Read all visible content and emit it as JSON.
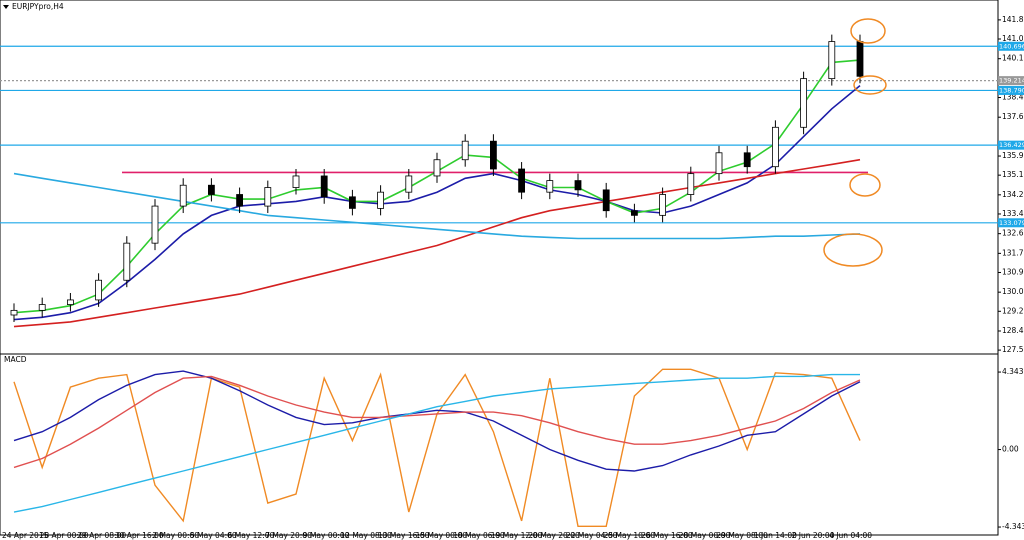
{
  "chart_data": [
    {
      "type": "candlestick",
      "title": "EURJPYpro,H4",
      "xticks": [
        "24 Apr 2015",
        "28 Apr 00:00",
        "29 Apr 08:00",
        "30 Apr 16:00",
        "2 May 00:00",
        "5 May 04:00",
        "6 May 12:00",
        "7 May 20:00",
        "9 May 00:00",
        "12 May 08:00",
        "13 May 16:00",
        "15 May 00:00",
        "18 May 06:00",
        "19 May 12:00",
        "20 May 20:00",
        "22 May 04:00",
        "25 May 10:00",
        "26 May 16:00",
        "28 May 00:00",
        "29 May 08:00",
        "1 Jun 14:00",
        "2 Jun 20:00",
        "4 Jun 04:00"
      ],
      "open": [
        129.1,
        129.3,
        129.55,
        129.75,
        130.6,
        132.2,
        133.8,
        134.7,
        134.3,
        133.8,
        134.6,
        135.1,
        134.2,
        133.7,
        134.4,
        135.1,
        135.8,
        136.6,
        135.4,
        134.4,
        134.9,
        134.5,
        133.6,
        133.4,
        134.3,
        135.2,
        136.1,
        135.5,
        137.2,
        139.3,
        140.9
      ],
      "high": [
        129.6,
        129.85,
        130.05,
        130.9,
        132.5,
        134.1,
        135.0,
        135.0,
        134.6,
        134.9,
        135.4,
        135.4,
        134.5,
        134.7,
        135.4,
        136.1,
        136.9,
        136.9,
        135.7,
        135.2,
        135.2,
        134.8,
        133.9,
        134.6,
        135.5,
        136.4,
        136.4,
        137.5,
        139.6,
        141.2,
        141.2
      ],
      "low": [
        128.8,
        129.0,
        129.25,
        129.45,
        130.3,
        131.9,
        133.5,
        134.0,
        133.5,
        133.5,
        134.3,
        133.9,
        133.4,
        133.4,
        134.1,
        134.8,
        135.5,
        135.1,
        134.1,
        134.1,
        134.2,
        133.3,
        133.1,
        133.1,
        134.0,
        134.9,
        135.2,
        135.2,
        136.9,
        139.0,
        139.1
      ],
      "close": [
        129.3,
        129.55,
        129.75,
        130.6,
        132.2,
        133.8,
        134.7,
        134.3,
        133.8,
        134.6,
        135.1,
        134.2,
        133.7,
        134.4,
        135.1,
        135.8,
        136.6,
        135.4,
        134.4,
        134.9,
        134.5,
        133.6,
        133.4,
        134.3,
        135.2,
        136.1,
        135.5,
        137.2,
        139.3,
        140.9,
        139.4
      ],
      "ylim": [
        127.46,
        142.65
      ],
      "yticks": [
        141.835,
        {
          "value": 141.01,
          "label": "141.010"
        },
        {
          "value": 140.16,
          "label": "140.160"
        },
        138.485,
        137.635,
        {
          "value": 135.96,
          "label": "135.960"
        },
        135.135,
        134.285,
        {
          "value": 133.46,
          "label": "133.460"
        },
        {
          "value": 132.61,
          "label": "132.610"
        },
        {
          "value": 131.76,
          "label": "131.760"
        },
        130.935,
        130.085,
        {
          "value": 129.26,
          "label": "129.260"
        },
        {
          "value": 128.41,
          "label": "128.410"
        },
        127.585
      ],
      "series": [
        {
          "color": "#1c1ca8",
          "values": [
            128.9,
            129.0,
            129.2,
            129.6,
            130.5,
            131.5,
            132.6,
            133.4,
            133.8,
            133.9,
            134.0,
            134.2,
            134.0,
            133.9,
            134.0,
            134.4,
            135.0,
            135.2,
            134.9,
            134.5,
            134.3,
            134.0,
            133.6,
            133.5,
            133.8,
            134.3,
            134.8,
            135.6,
            136.8,
            138.0,
            139.0
          ]
        },
        {
          "color": "#2ecc2e",
          "values": [
            129.2,
            129.3,
            129.5,
            130.0,
            131.2,
            132.6,
            133.8,
            134.3,
            134.1,
            134.1,
            134.5,
            134.6,
            134.0,
            134.0,
            134.6,
            135.3,
            136.0,
            135.9,
            135.0,
            134.6,
            134.6,
            134.0,
            133.5,
            133.7,
            134.4,
            135.3,
            135.7,
            136.5,
            138.2,
            140.0,
            140.1
          ]
        },
        {
          "color": "#d42020",
          "values": [
            128.6,
            128.7,
            128.8,
            129.0,
            129.2,
            129.4,
            129.6,
            129.8,
            130.0,
            130.3,
            130.6,
            130.9,
            131.2,
            131.5,
            131.8,
            132.1,
            132.5,
            132.9,
            133.3,
            133.6,
            133.8,
            134.0,
            134.2,
            134.4,
            134.6,
            134.8,
            135.0,
            135.2,
            135.4,
            135.6,
            135.8
          ]
        },
        {
          "color": "#29a9e0",
          "values": [
            135.2,
            135.0,
            134.8,
            134.6,
            134.4,
            134.2,
            134.0,
            133.8,
            133.6,
            133.4,
            133.3,
            133.2,
            133.1,
            133.0,
            132.9,
            132.8,
            132.7,
            132.6,
            132.5,
            132.45,
            132.4,
            132.4,
            132.4,
            132.4,
            132.4,
            132.4,
            132.45,
            132.5,
            132.5,
            132.55,
            132.6
          ]
        }
      ],
      "levels": [
        {
          "value": 140.696,
          "color": "#1fa8e8"
        },
        {
          "value": 138.79,
          "label": "138.790",
          "color": "#1fa8e8"
        },
        {
          "value": 136.429,
          "color": "#1fa8e8"
        },
        {
          "value": 133.079,
          "color": "#1fa8e8"
        }
      ],
      "resistance": {
        "value": 135.25,
        "color": "#e0206a"
      },
      "price_line": {
        "value": 139.214,
        "color": "#999999"
      }
    },
    {
      "type": "line",
      "title": "MACD",
      "ylim": [
        -4.79,
        5.3
      ],
      "yticks": [
        4.3438,
        {
          "value": 0,
          "label": "0.00"
        },
        -4.3438
      ],
      "series": [
        {
          "color": "#f08a24",
          "values": [
            3.8,
            -1.0,
            3.5,
            4.0,
            4.2,
            -2.0,
            -4.0,
            4.0,
            3.5,
            -3.0,
            -2.5,
            4.0,
            0.5,
            4.2,
            -3.5,
            2.0,
            4.2,
            1.0,
            -4.0,
            4.0,
            -4.3,
            -4.3,
            3.0,
            4.5,
            4.5,
            4.0,
            0.0,
            4.3,
            4.2,
            4.0,
            0.5
          ]
        },
        {
          "color": "#1c1ca8",
          "values": [
            0.5,
            1.0,
            1.8,
            2.8,
            3.6,
            4.2,
            4.4,
            4.0,
            3.3,
            2.5,
            1.8,
            1.4,
            1.5,
            1.8,
            2.0,
            2.2,
            2.1,
            1.6,
            0.8,
            0.0,
            -0.6,
            -1.1,
            -1.2,
            -0.9,
            -0.3,
            0.2,
            0.8,
            1.0,
            2.0,
            3.0,
            3.8
          ]
        },
        {
          "color": "#e05050",
          "values": [
            -1.0,
            -0.5,
            0.3,
            1.2,
            2.2,
            3.2,
            4.0,
            4.1,
            3.6,
            3.0,
            2.5,
            2.1,
            1.8,
            1.8,
            1.9,
            2.0,
            2.1,
            2.1,
            1.9,
            1.5,
            1.0,
            0.6,
            0.3,
            0.3,
            0.5,
            0.8,
            1.2,
            1.6,
            2.3,
            3.2,
            3.9
          ]
        },
        {
          "color": "#29b6e8",
          "values": [
            -3.5,
            -3.2,
            -2.8,
            -2.4,
            -2.0,
            -1.6,
            -1.2,
            -0.8,
            -0.4,
            0.0,
            0.4,
            0.8,
            1.2,
            1.6,
            2.0,
            2.4,
            2.7,
            3.0,
            3.2,
            3.4,
            3.5,
            3.6,
            3.7,
            3.8,
            3.9,
            4.0,
            4.0,
            4.1,
            4.1,
            4.2,
            4.2
          ]
        }
      ]
    }
  ]
}
